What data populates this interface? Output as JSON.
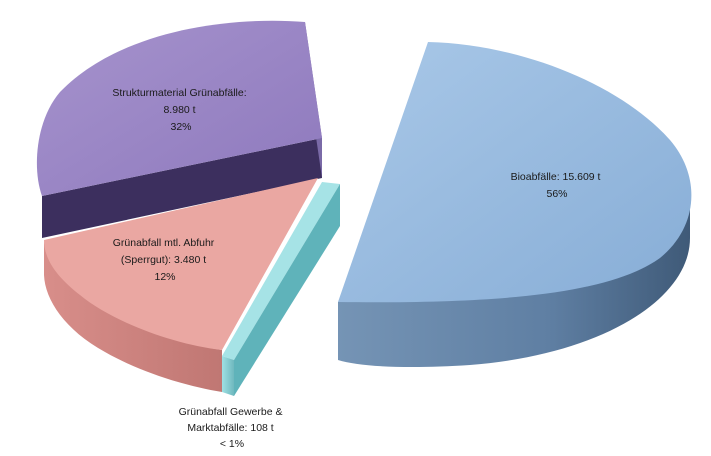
{
  "chart_data": {
    "type": "pie",
    "style": "3d-exploded",
    "slices": [
      {
        "name": "Bioabfälle",
        "value": 15609,
        "unit": "t",
        "percent_label": "56%",
        "label_lines": [
          "Bioabfälle: 15.609 t",
          "56%"
        ],
        "color": "#8fb4d9"
      },
      {
        "name": "Grünabfall Gewerbe & Marktabfälle",
        "value": 108,
        "unit": "t",
        "percent_label": "< 1%",
        "label_lines": [
          "Grünabfall Gewerbe &",
          "Marktabfälle: 108 t",
          "< 1%"
        ],
        "color": "#8fd3d8"
      },
      {
        "name": "Grünabfall mtl. Abfuhr (Sperrgut)",
        "value": 3480,
        "unit": "t",
        "percent_label": "12%",
        "label_lines": [
          "Grünabfall mtl. Abfuhr",
          "(Sperrgut): 3.480 t",
          "12%"
        ],
        "color": "#e9a5a0"
      },
      {
        "name": "Strukturmaterial Grünabfälle",
        "value": 8980,
        "unit": "t",
        "percent_label": "32%",
        "label_lines": [
          "Strukturmaterial Grünabfälle:",
          "8.980 t",
          "32%"
        ],
        "color": "#9a86c4"
      }
    ]
  }
}
